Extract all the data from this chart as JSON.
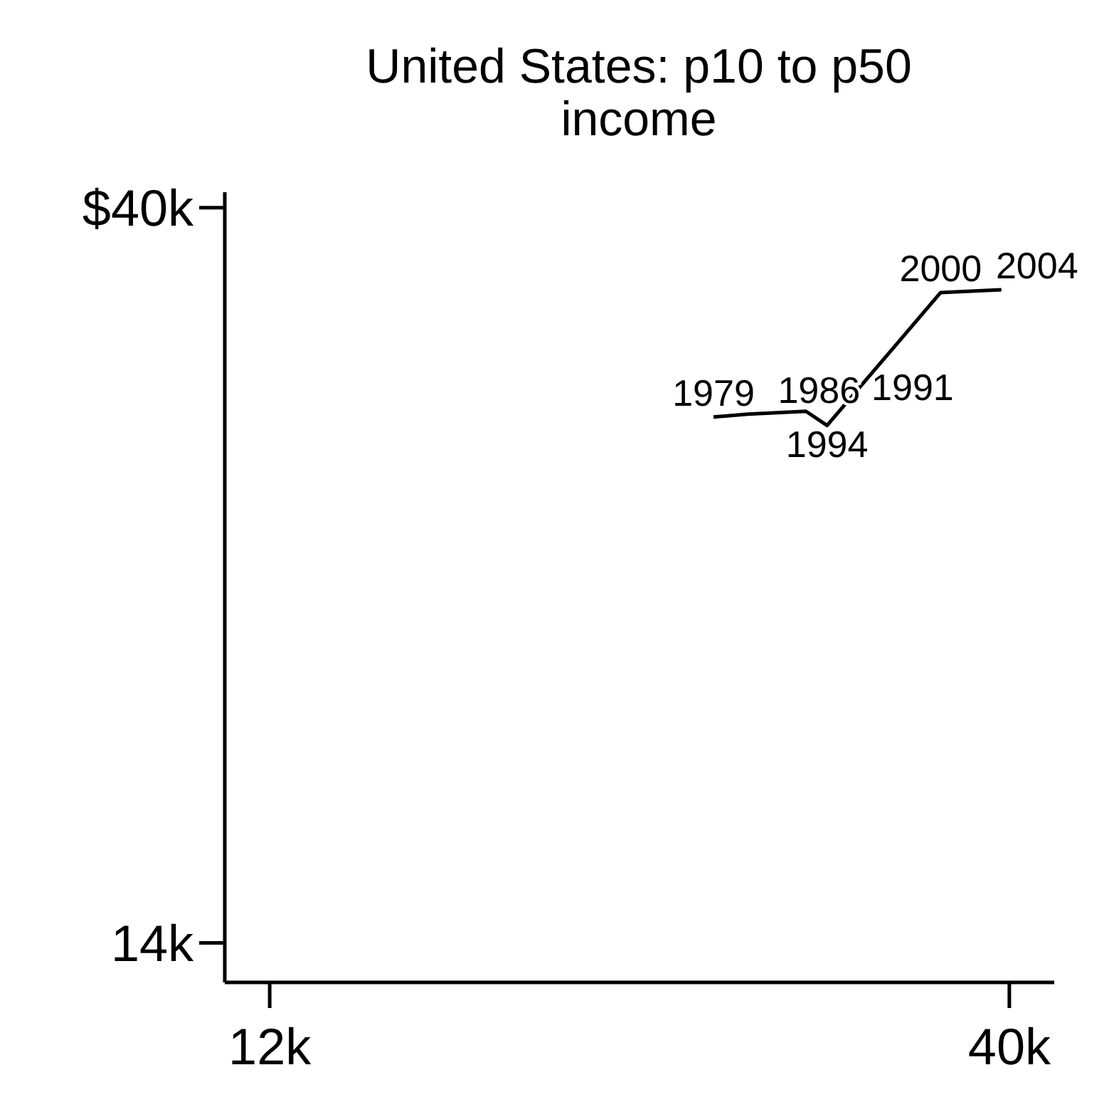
{
  "chart_data": {
    "type": "line",
    "title": "United States: p10 to p50 income",
    "x": [
      28.8,
      30.1,
      32.3,
      33.1,
      37.4,
      39.7
    ],
    "series": [
      {
        "color": "#000000",
        "values": [
          32.6,
          32.7,
          32.8,
          32.3,
          37.0,
          37.1
        ]
      }
    ],
    "annotations": [
      {
        "text": "1979",
        "x": 28.8,
        "y": 32.6
      },
      {
        "text": "1986",
        "x": 30.1,
        "y": 32.7
      },
      {
        "text": "1991",
        "x": 32.3,
        "y": 32.8
      },
      {
        "text": "1994",
        "x": 33.1,
        "y": 32.3
      },
      {
        "text": "2000",
        "x": 37.4,
        "y": 37.0
      },
      {
        "text": "2004",
        "x": 39.7,
        "y": 37.1
      }
    ],
    "xlim": [
      10.3,
      41.7
    ],
    "ylim": [
      12.6,
      40.55
    ],
    "xticks": [
      {
        "value": 12,
        "label": "12k"
      },
      {
        "value": 40,
        "label": "40k"
      }
    ],
    "yticks": [
      {
        "value": 14,
        "label": "14k"
      },
      {
        "value": 40,
        "label": "$40k"
      }
    ],
    "grid": false,
    "marker": "none",
    "line_style": "solid"
  }
}
